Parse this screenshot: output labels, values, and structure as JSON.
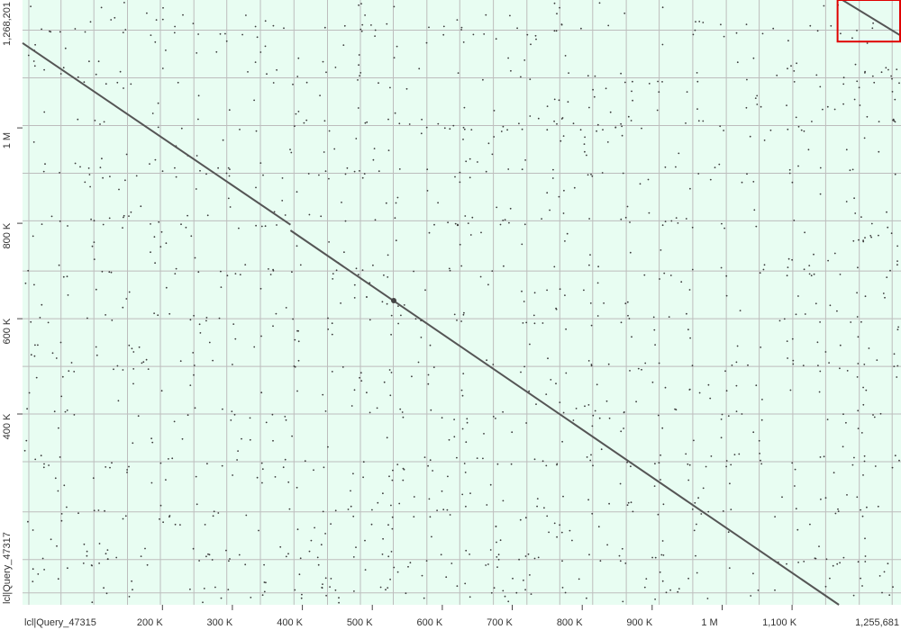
{
  "chart_data": {
    "type": "scatter",
    "subtype": "dotplot",
    "xlabel": "lcl|Query_47315",
    "ylabel": "lcl|Query_47317",
    "xlim": [
      0,
      1255681
    ],
    "ylim": [
      0,
      1268201
    ],
    "x_ticks": [
      {
        "value": 200000,
        "label": "200 K"
      },
      {
        "value": 300000,
        "label": "300 K"
      },
      {
        "value": 400000,
        "label": "400 K"
      },
      {
        "value": 500000,
        "label": "500 K"
      },
      {
        "value": 600000,
        "label": "600 K"
      },
      {
        "value": 700000,
        "label": "700 K"
      },
      {
        "value": 800000,
        "label": "800 K"
      },
      {
        "value": 900000,
        "label": "900 K"
      },
      {
        "value": 1000000,
        "label": "1 M"
      },
      {
        "value": 1100000,
        "label": "1,100 K"
      }
    ],
    "x_end_label": "1,255,681",
    "y_ticks": [
      {
        "value": 400000,
        "label": "400 K"
      },
      {
        "value": 600000,
        "label": "600 K"
      },
      {
        "value": 800000,
        "label": "800 K"
      },
      {
        "value": 1000000,
        "label": "1 M"
      }
    ],
    "y_end_label": "1,268,201",
    "x_grid": [
      9000,
      55000,
      102000,
      150000,
      197000,
      245000,
      292000,
      340000,
      388000,
      436000,
      483000,
      530000,
      578000,
      625000,
      673000,
      721000,
      768000,
      815000,
      863000,
      910000,
      958000,
      1006000,
      1053000,
      1101000,
      1148000,
      1196000,
      1243000
    ],
    "y_grid": [
      25000,
      95000,
      195000,
      300000,
      400000,
      500000,
      600000,
      700000,
      805000,
      905000,
      1005000,
      1105000,
      1205000
    ],
    "alignments": [
      {
        "x": [
          0,
          383000
        ],
        "y": [
          1178000,
          797000
        ]
      },
      {
        "x": [
          383000,
          1167000
        ],
        "y": [
          785000,
          0
        ]
      },
      {
        "x": [
          1172000,
          1255681
        ],
        "y": [
          1268201,
          1193000
        ]
      }
    ],
    "highlight": {
      "x": [
        1165000,
        1255681
      ],
      "y": [
        1181000,
        1268201
      ],
      "color": "#e00000"
    },
    "colors": {
      "background": "#e8fdf2",
      "grid": "#bdbdbd",
      "dots": "#3a3a3a",
      "alignment": "#555555"
    }
  }
}
